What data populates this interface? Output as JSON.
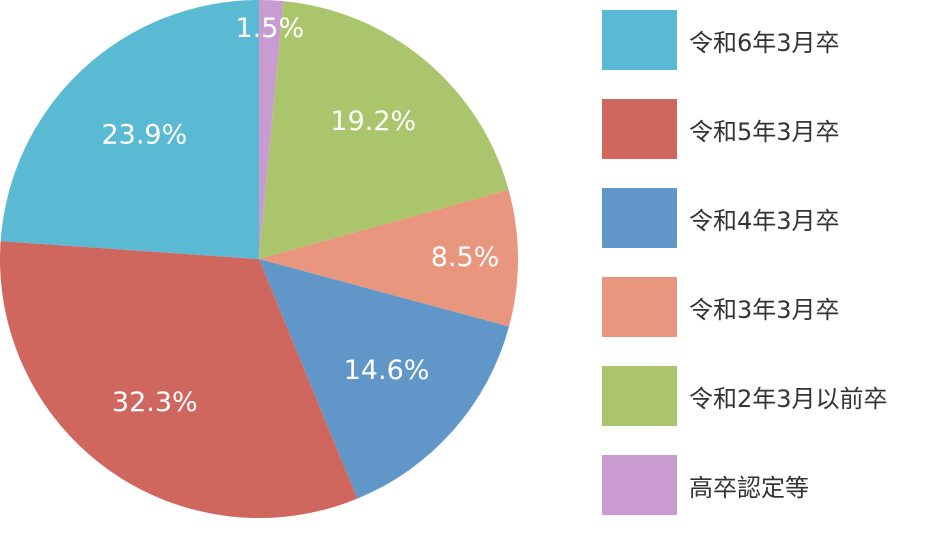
{
  "chart_data": {
    "type": "pie",
    "title": "",
    "legend_position": "right",
    "start_angle_deg": 90,
    "direction": "clockwise",
    "slices": [
      {
        "label": "高卒認定等",
        "value": 1.5,
        "value_label": "1.5%",
        "color": "#c99bd0"
      },
      {
        "label": "令和2年3月以前卒",
        "value": 19.2,
        "value_label": "19.2%",
        "color": "#aac56b"
      },
      {
        "label": "令和3年3月卒",
        "value": 8.5,
        "value_label": "8.5%",
        "color": "#e9967e"
      },
      {
        "label": "令和4年3月卒",
        "value": 14.6,
        "value_label": "14.6%",
        "color": "#6196c8"
      },
      {
        "label": "令和5年3月卒",
        "value": 32.3,
        "value_label": "32.3%",
        "color": "#d0675e"
      },
      {
        "label": "令和6年3月卒",
        "value": 23.9,
        "value_label": "23.9%",
        "color": "#5bbad3"
      }
    ],
    "legend": [
      {
        "label": "令和6年3月卒",
        "color": "#5bbad3"
      },
      {
        "label": "令和5年3月卒",
        "color": "#d0675e"
      },
      {
        "label": "令和4年3月卒",
        "color": "#6196c8"
      },
      {
        "label": "令和3年3月卒",
        "color": "#e9967e"
      },
      {
        "label": "令和2年3月以前卒",
        "color": "#aac56b"
      },
      {
        "label": "高卒認定等",
        "color": "#c99bd0"
      }
    ]
  }
}
